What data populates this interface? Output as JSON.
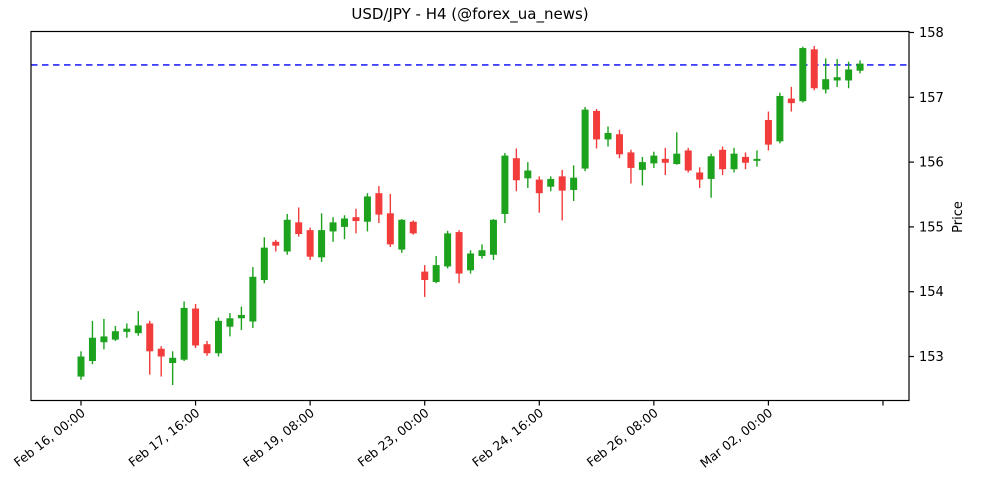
{
  "chart_data": {
    "type": "candlestick",
    "title": "USD/JPY - H4 (@forex_ua_news)",
    "ylabel": "Price",
    "xlabel": "",
    "timeframe": "H4",
    "grid": false,
    "legend_position": "none",
    "y_ticks": [
      153,
      154,
      155,
      156,
      157,
      158
    ],
    "ylim": [
      152.32,
      158.02
    ],
    "x_ticks": [
      {
        "i": 0,
        "label": "Feb 16, 00:00"
      },
      {
        "i": 10,
        "label": "Feb 17, 16:00"
      },
      {
        "i": 20,
        "label": "Feb 19, 08:00"
      },
      {
        "i": 30,
        "label": "Feb 23, 00:00"
      },
      {
        "i": 40,
        "label": "Feb 24, 16:00"
      },
      {
        "i": 50,
        "label": "Feb 26, 08:00"
      },
      {
        "i": 60,
        "label": "Mar 02, 00:00"
      },
      {
        "i": 70,
        "label": ""
      }
    ],
    "hline": {
      "price": 157.5,
      "color": "#0000ff",
      "style": "dashed"
    },
    "colors": {
      "up": "#1da21d",
      "down": "#f23b3b",
      "axis": "#000000",
      "background": "#ffffff"
    },
    "candles_ohlc": [
      [
        152.69,
        153.08,
        152.64,
        153.0
      ],
      [
        152.93,
        153.55,
        152.88,
        153.29
      ],
      [
        153.22,
        153.58,
        153.11,
        153.31
      ],
      [
        153.26,
        153.47,
        153.24,
        153.39
      ],
      [
        153.38,
        153.51,
        153.29,
        153.43
      ],
      [
        153.36,
        153.7,
        153.32,
        153.48
      ],
      [
        153.51,
        153.55,
        152.72,
        153.08
      ],
      [
        153.12,
        153.16,
        152.69,
        153.0
      ],
      [
        152.9,
        153.08,
        152.56,
        152.98
      ],
      [
        152.95,
        153.85,
        152.93,
        153.75
      ],
      [
        153.74,
        153.81,
        153.13,
        153.17
      ],
      [
        153.19,
        153.24,
        153.01,
        153.05
      ],
      [
        153.05,
        153.6,
        153.0,
        153.55
      ],
      [
        153.46,
        153.67,
        153.31,
        153.59
      ],
      [
        153.59,
        153.77,
        153.41,
        153.64
      ],
      [
        153.54,
        154.38,
        153.44,
        154.23
      ],
      [
        154.18,
        154.84,
        154.13,
        154.68
      ],
      [
        154.77,
        154.8,
        154.62,
        154.71
      ],
      [
        154.62,
        155.2,
        154.57,
        155.11
      ],
      [
        155.07,
        155.3,
        154.85,
        154.89
      ],
      [
        154.95,
        154.99,
        154.49,
        154.54
      ],
      [
        154.53,
        155.21,
        154.46,
        154.95
      ],
      [
        154.93,
        155.15,
        154.77,
        155.07
      ],
      [
        155.0,
        155.18,
        154.81,
        155.13
      ],
      [
        155.15,
        155.28,
        154.9,
        155.09
      ],
      [
        155.08,
        155.52,
        154.93,
        155.47
      ],
      [
        155.52,
        155.63,
        155.06,
        155.19
      ],
      [
        155.21,
        155.51,
        154.69,
        154.73
      ],
      [
        154.65,
        155.12,
        154.6,
        155.11
      ],
      [
        155.08,
        155.1,
        154.88,
        154.9
      ],
      [
        154.31,
        154.41,
        153.92,
        154.18
      ],
      [
        154.15,
        154.55,
        154.13,
        154.41
      ],
      [
        154.39,
        154.94,
        154.36,
        154.9
      ],
      [
        154.92,
        154.95,
        154.13,
        154.28
      ],
      [
        154.33,
        154.64,
        154.28,
        154.59
      ],
      [
        154.55,
        154.73,
        154.51,
        154.64
      ],
      [
        154.57,
        155.12,
        154.49,
        155.11
      ],
      [
        155.2,
        156.14,
        155.06,
        156.1
      ],
      [
        156.06,
        156.21,
        155.55,
        155.72
      ],
      [
        155.75,
        156.0,
        155.6,
        155.87
      ],
      [
        155.73,
        155.78,
        155.22,
        155.52
      ],
      [
        155.62,
        155.78,
        155.55,
        155.74
      ],
      [
        155.78,
        155.88,
        155.1,
        155.56
      ],
      [
        155.57,
        155.95,
        155.4,
        155.76
      ],
      [
        155.9,
        156.85,
        155.86,
        156.81
      ],
      [
        156.79,
        156.82,
        156.21,
        156.35
      ],
      [
        156.35,
        156.55,
        156.24,
        156.45
      ],
      [
        156.43,
        156.5,
        156.06,
        156.12
      ],
      [
        156.15,
        156.19,
        155.67,
        155.91
      ],
      [
        155.88,
        156.08,
        155.64,
        156.0
      ],
      [
        155.98,
        156.16,
        155.91,
        156.1
      ],
      [
        156.05,
        156.22,
        155.8,
        155.99
      ],
      [
        155.97,
        156.46,
        155.96,
        156.13
      ],
      [
        156.18,
        156.22,
        155.84,
        155.87
      ],
      [
        155.84,
        155.92,
        155.6,
        155.73
      ],
      [
        155.74,
        156.13,
        155.45,
        156.09
      ],
      [
        156.19,
        156.24,
        155.8,
        155.89
      ],
      [
        155.89,
        156.22,
        155.84,
        156.13
      ],
      [
        156.08,
        156.15,
        155.89,
        155.99
      ],
      [
        156.02,
        156.18,
        155.93,
        156.05
      ],
      [
        156.65,
        156.78,
        156.18,
        156.27
      ],
      [
        156.32,
        157.07,
        156.29,
        157.02
      ],
      [
        156.98,
        157.16,
        156.78,
        156.91
      ],
      [
        156.94,
        157.78,
        156.92,
        157.76
      ],
      [
        157.74,
        157.79,
        157.11,
        157.14
      ],
      [
        157.12,
        157.6,
        157.06,
        157.28
      ],
      [
        157.26,
        157.59,
        157.16,
        157.31
      ],
      [
        157.26,
        157.55,
        157.14,
        157.43
      ],
      [
        157.41,
        157.57,
        157.37,
        157.52
      ]
    ]
  }
}
